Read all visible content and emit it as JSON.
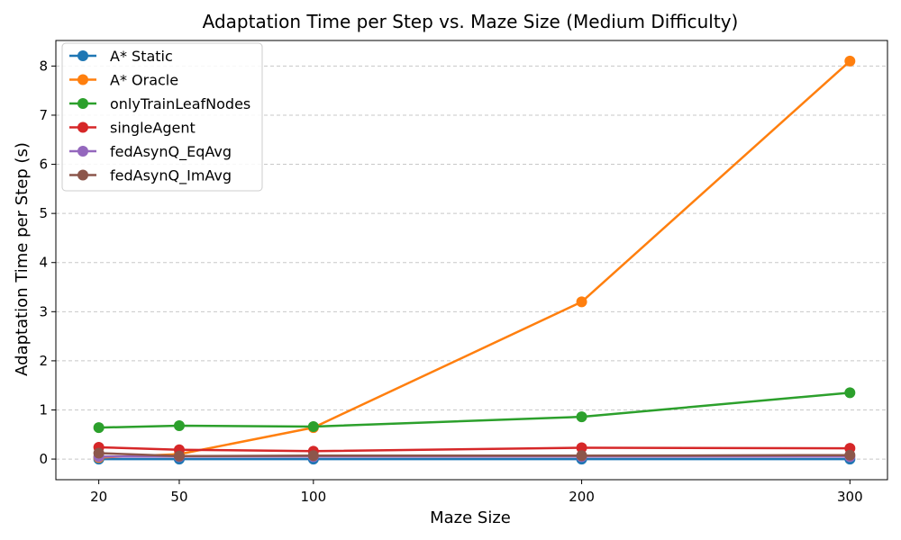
{
  "chart_data": {
    "type": "line",
    "title": "Adaptation Time per Step vs. Maze Size (Medium Difficulty)",
    "xlabel": "Maze Size",
    "ylabel": "Adaptation Time per Step (s)",
    "x": [
      20,
      50,
      100,
      200,
      300
    ],
    "xticks": [
      "20",
      "50",
      "100",
      "200",
      "300"
    ],
    "yticks": [
      "0",
      "1",
      "2",
      "3",
      "4",
      "5",
      "6",
      "7",
      "8"
    ],
    "xlim": [
      4,
      314
    ],
    "ylim": [
      -0.42,
      8.52
    ],
    "grid": "y-dashed",
    "legend_position": "upper-left",
    "series": [
      {
        "name": "A* Static",
        "color": "#1f77b4",
        "values": [
          0.0,
          0.0,
          0.0,
          0.0,
          0.0
        ]
      },
      {
        "name": "A* Oracle",
        "color": "#ff7f0e",
        "values": [
          0.03,
          0.1,
          0.64,
          3.2,
          8.1
        ]
      },
      {
        "name": "onlyTrainLeafNodes",
        "color": "#2ca02c",
        "values": [
          0.64,
          0.68,
          0.66,
          0.86,
          1.35
        ]
      },
      {
        "name": "singleAgent",
        "color": "#d62728",
        "values": [
          0.24,
          0.19,
          0.16,
          0.23,
          0.22
        ]
      },
      {
        "name": "fedAsynQ_EqAvg",
        "color": "#9467bd",
        "values": [
          0.05,
          0.05,
          0.05,
          0.05,
          0.05
        ]
      },
      {
        "name": "fedAsynQ_ImAvg",
        "color": "#8c564b",
        "values": [
          0.12,
          0.06,
          0.07,
          0.07,
          0.08
        ]
      }
    ]
  }
}
